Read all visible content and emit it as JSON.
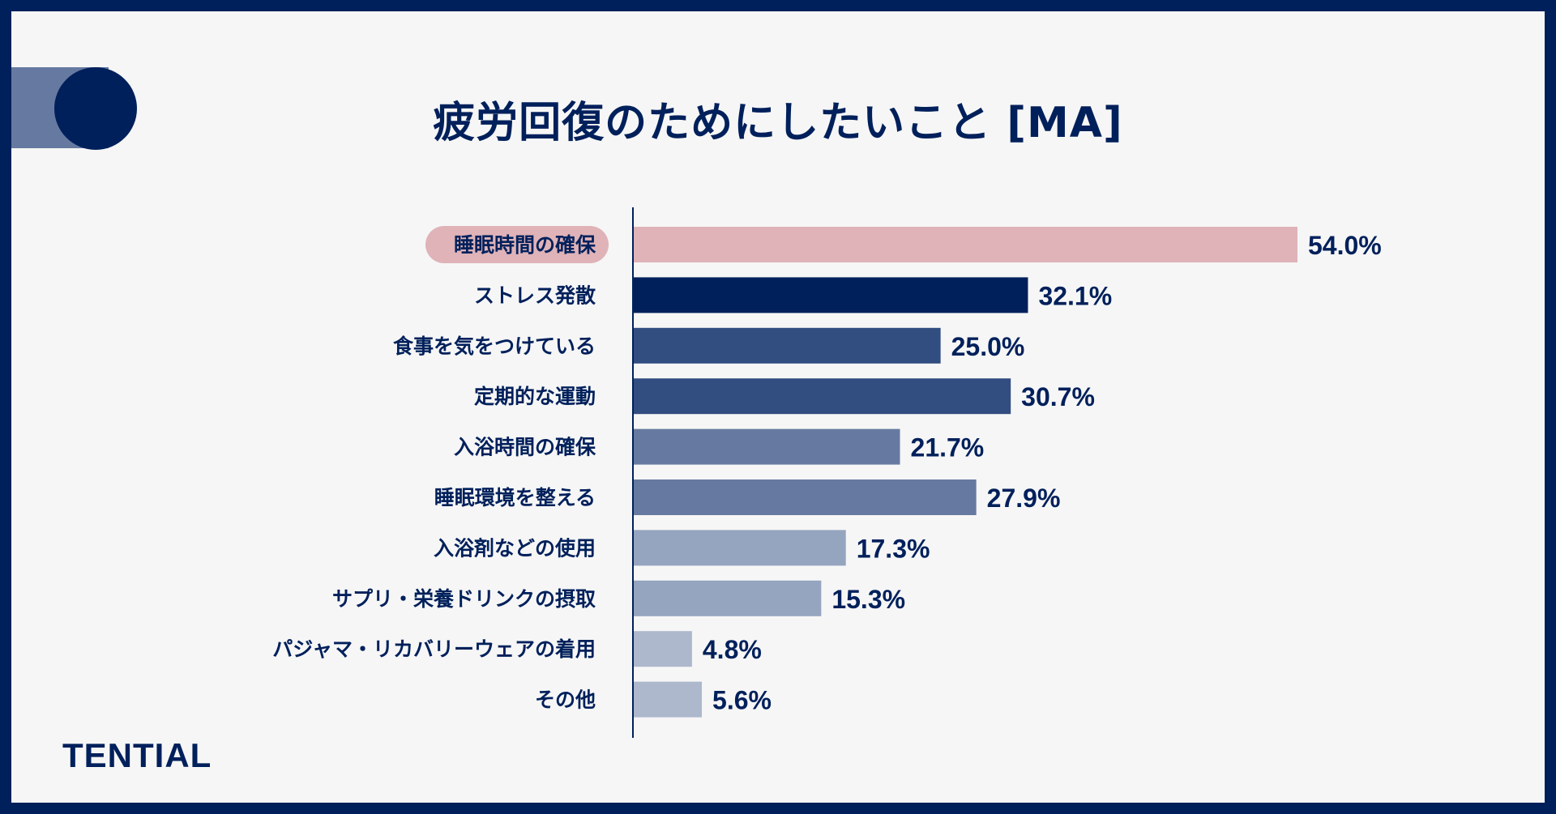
{
  "title": "疲労回復のためにしたいこと [MA]",
  "brand": "TENTIAL",
  "colors": {
    "frame": "#00205b",
    "background": "#f6f6f6",
    "highlight_pill": "#dfb3b8"
  },
  "chart_data": {
    "type": "bar",
    "orientation": "horizontal",
    "title": "疲労回復のためにしたいこと [MA]",
    "unit": "%",
    "categories": [
      "睡眠時間の確保",
      "ストレス発散",
      "食事を気をつけている",
      "定期的な運動",
      "入浴時間の確保",
      "睡眠環境を整える",
      "入浴剤などの使用",
      "サプリ・栄養ドリンクの摂取",
      "パジャマ・リカバリーウェアの着用",
      "その他"
    ],
    "values": [
      54.0,
      32.1,
      25.0,
      30.7,
      21.7,
      27.9,
      17.3,
      15.3,
      4.8,
      5.6
    ],
    "value_labels": [
      "54.0%",
      "32.1%",
      "25.0%",
      "30.7%",
      "21.7%",
      "27.9%",
      "17.3%",
      "15.3%",
      "4.8%",
      "5.6%"
    ],
    "bar_colors": [
      "#dfb3b8",
      "#00205b",
      "#324d80",
      "#324d80",
      "#667aa1",
      "#667aa1",
      "#95a4bf",
      "#95a4bf",
      "#adb8cd",
      "#adb8cd"
    ],
    "highlighted_category": "睡眠時間の確保",
    "xlim": [
      0,
      54.0
    ],
    "grid": false
  }
}
